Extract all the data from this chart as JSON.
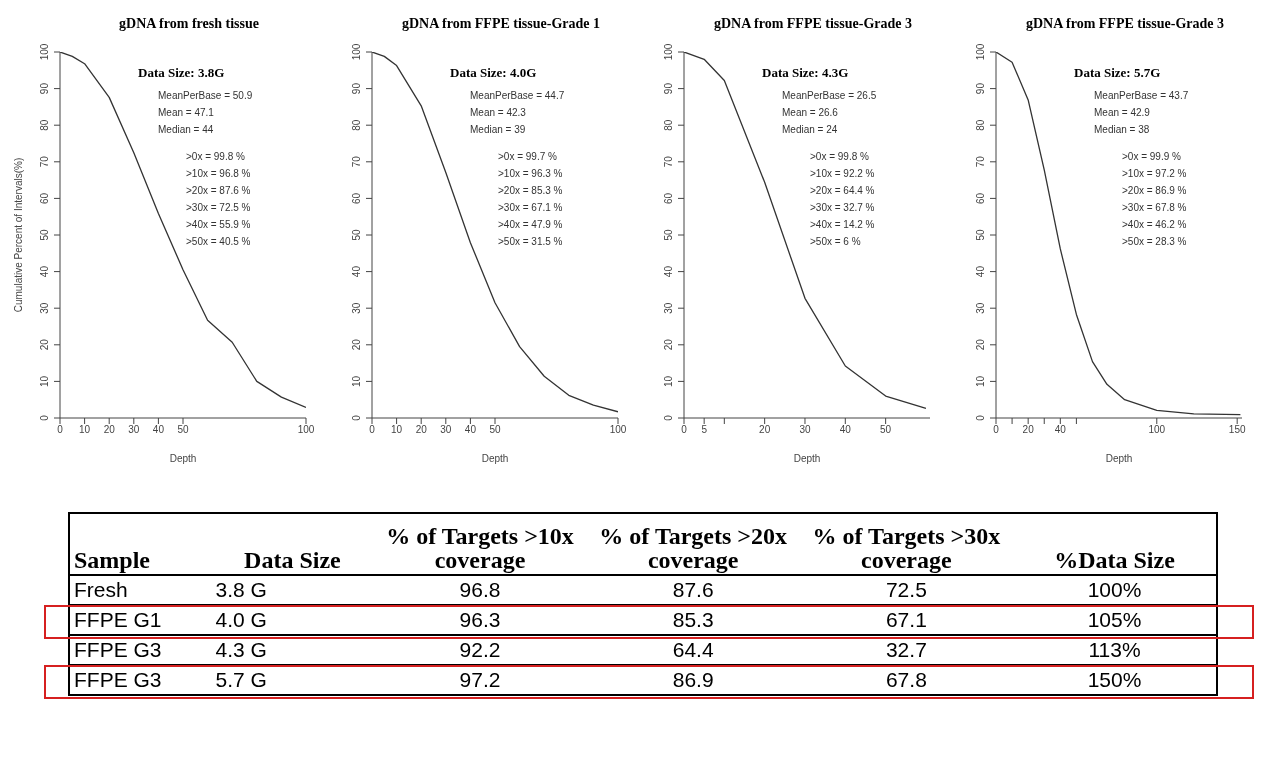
{
  "chart_data": [
    {
      "type": "line",
      "title": "gDNA from fresh tissue",
      "xlabel": "Depth",
      "ylabel": "Cumulative Percent of Intervals(%)",
      "marker": "none",
      "x": [
        0,
        5,
        10,
        20,
        30,
        40,
        50,
        60,
        70,
        80,
        90,
        100
      ],
      "values": [
        100,
        98.8,
        96.8,
        87.6,
        72.5,
        55.9,
        40.5,
        26.7,
        20.7,
        10,
        5.7,
        2.9
      ],
      "color": "#333333",
      "xlim": [
        0,
        100
      ],
      "xticks": [
        0,
        10,
        20,
        30,
        40,
        50,
        100
      ],
      "ylim": [
        0,
        100
      ],
      "yticks": [
        0,
        10,
        20,
        30,
        40,
        50,
        60,
        70,
        80,
        90,
        100
      ],
      "annotations": [
        "Data Size: 3.8G",
        "MeanPerBase = 50.9",
        "Mean = 47.1",
        "Median = 44",
        ">0x = 99.8 %",
        ">10x = 96.8 %",
        ">20x = 87.6 %",
        ">30x = 72.5 %",
        ">40x = 55.9 %",
        ">50x = 40.5 %"
      ]
    },
    {
      "type": "line",
      "title": "gDNA from FFPE tissue-Grade 1",
      "xlabel": "Depth",
      "marker": "none",
      "x": [
        0,
        5,
        10,
        20,
        30,
        40,
        50,
        60,
        70,
        80,
        90,
        100
      ],
      "values": [
        100,
        98.8,
        96.3,
        85.3,
        67.1,
        47.9,
        31.5,
        19.5,
        11.4,
        6.2,
        3.5,
        1.7
      ],
      "color": "#333333",
      "xlim": [
        0,
        100
      ],
      "xticks": [
        0,
        10,
        20,
        30,
        40,
        50,
        100
      ],
      "ylim": [
        0,
        100
      ],
      "yticks": [
        0,
        10,
        20,
        30,
        40,
        50,
        60,
        70,
        80,
        90,
        100
      ],
      "annotations": [
        "Data Size: 4.0G",
        "MeanPerBase = 44.7",
        "Mean = 42.3",
        "Median = 39",
        ">0x = 99.7 %",
        ">10x = 96.3 %",
        ">20x = 85.3 %",
        ">30x = 67.1 %",
        ">40x = 47.9 %",
        ">50x = 31.5 %"
      ]
    },
    {
      "type": "line",
      "title": "gDNA from FFPE tissue-Grade 3",
      "xlabel": "Depth",
      "marker": "none",
      "x": [
        0,
        5,
        10,
        20,
        30,
        40,
        50,
        60
      ],
      "values": [
        100,
        98,
        92.2,
        64.4,
        32.7,
        14.2,
        6,
        2.6
      ],
      "color": "#333333",
      "xlim": [
        0,
        61
      ],
      "xticks": [
        0,
        5,
        {
          "value": 10,
          "label": null
        },
        20,
        30,
        40,
        50
      ],
      "ylim": [
        0,
        100
      ],
      "yticks": [
        0,
        10,
        20,
        30,
        40,
        50,
        60,
        70,
        80,
        90,
        100
      ],
      "annotations": [
        "Data Size: 4.3G",
        "MeanPerBase = 26.5",
        "Mean = 26.6",
        "Median = 24",
        ">0x = 99.8 %",
        ">10x = 92.2 %",
        ">20x = 64.4 %",
        ">30x = 32.7 %",
        ">40x = 14.2 %",
        ">50x = 6 %"
      ]
    },
    {
      "type": "line",
      "title": "gDNA from FFPE tissue-Grade 3",
      "xlabel": "Depth",
      "marker": "none",
      "x": [
        0,
        10,
        20,
        30,
        40,
        50,
        60,
        69,
        80,
        100,
        123,
        152
      ],
      "values": [
        100,
        97.2,
        86.9,
        67.8,
        46.2,
        28.3,
        15.4,
        9.2,
        5,
        2.1,
        1.1,
        0.9
      ],
      "color": "#333333",
      "xlim": [
        0,
        153
      ],
      "xticks": [
        0,
        {
          "value": 10,
          "label": null
        },
        20,
        {
          "value": 30,
          "label": null
        },
        40,
        {
          "value": 50,
          "label": null
        },
        100,
        150
      ],
      "ylim": [
        0,
        100
      ],
      "yticks": [
        0,
        10,
        20,
        30,
        40,
        50,
        60,
        70,
        80,
        90,
        100
      ],
      "annotations": [
        "Data Size: 5.7G",
        "MeanPerBase = 43.7",
        "Mean = 42.9",
        "Median = 38",
        ">0x = 99.9 %",
        ">10x = 97.2 %",
        ">20x = 86.9 %",
        ">30x = 67.8 %",
        ">40x = 46.2 %",
        ">50x = 28.3 %"
      ]
    },
    {
      "type": "other",
      "categories": [
        "Sample",
        "Data Size",
        "% of Targets >10x coverage",
        "% of Targets >20x coverage",
        "% of Targets >30x coverage",
        "%Data Size"
      ],
      "y_categories": [
        "Fresh",
        "FFPE G1",
        "FFPE G3",
        "FFPE G3"
      ],
      "cell_labels": [
        [
          "3.8 G",
          "96.8",
          "87.6",
          "72.5",
          "100%"
        ],
        [
          "4.0 G",
          "96.3",
          "85.3",
          "67.1",
          "105%"
        ],
        [
          "4.3 G",
          "92.2",
          "64.4",
          "32.7",
          "113%"
        ],
        [
          "5.7 G",
          "97.2",
          "86.9",
          "67.8",
          "150%"
        ]
      ]
    }
  ]
}
